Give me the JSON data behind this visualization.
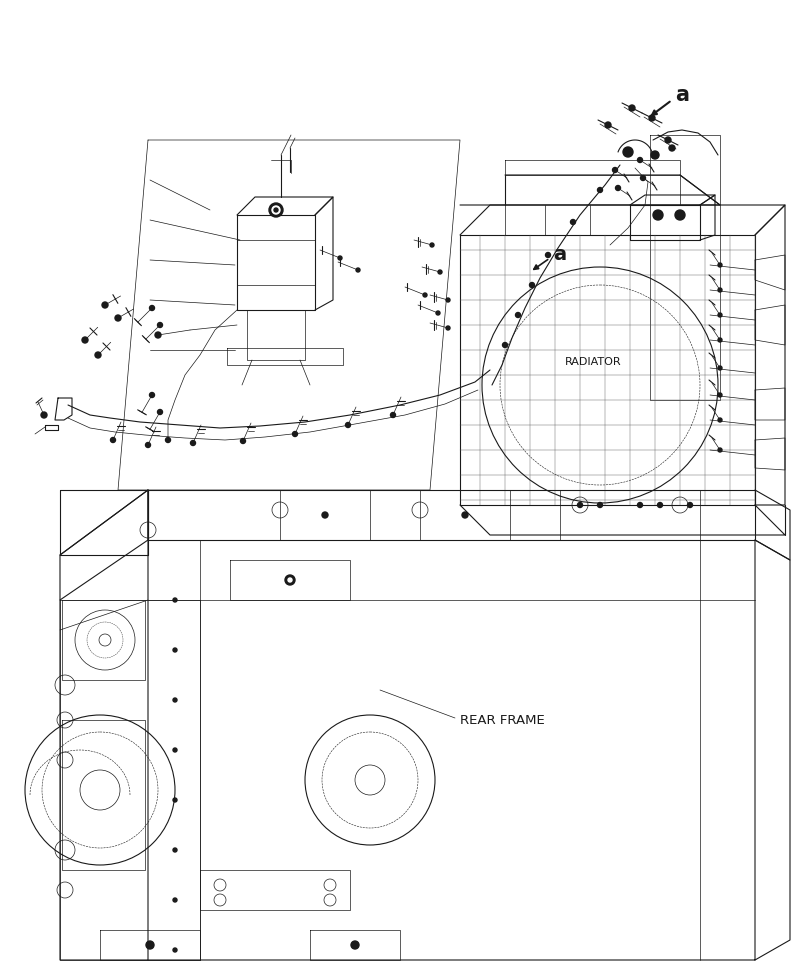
{
  "background_color": "#ffffff",
  "line_color": "#1a1a1a",
  "label_radiator": "RADIATOR",
  "label_rear_frame": "REAR FRAME",
  "label_a": "a",
  "figsize": [
    7.92,
    9.61
  ],
  "dpi": 100,
  "lw_thin": 0.5,
  "lw_med": 0.8,
  "lw_thick": 1.1
}
